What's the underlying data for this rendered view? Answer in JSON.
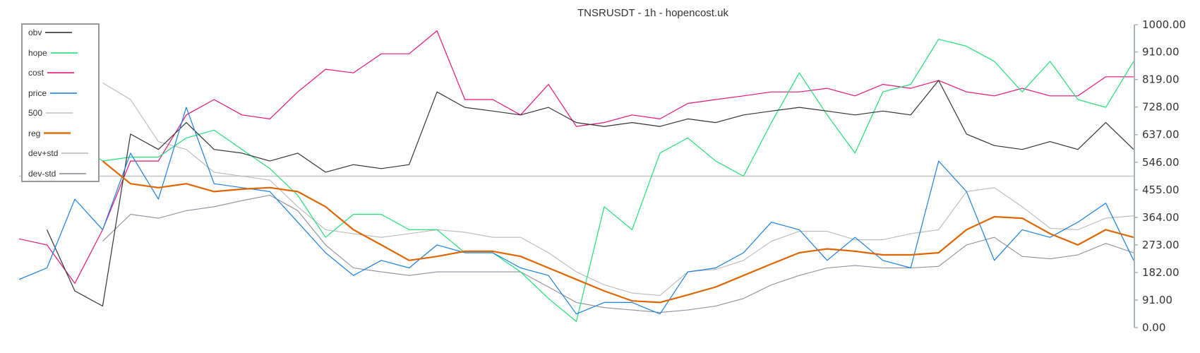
{
  "chart_data": {
    "type": "line",
    "title": "TNSRUSDT - 1h - hopencost.uk",
    "xlabel": "",
    "ylabel": "",
    "ylim": [
      0,
      1000
    ],
    "yticks": [
      "0.00",
      "91.00",
      "182.00",
      "273.00",
      "364.00",
      "455.00",
      "546.00",
      "637.00",
      "728.00",
      "819.00",
      "910.00",
      "1000.00"
    ],
    "ytick_values": [
      0,
      91,
      182,
      273,
      364,
      455,
      546,
      637,
      728,
      819,
      910,
      1000
    ],
    "y_axis_side": "right",
    "grid": false,
    "legend_position": "top-left",
    "x": [
      0,
      1,
      2,
      3,
      4,
      5,
      6,
      7,
      8,
      9,
      10,
      11,
      12,
      13,
      14,
      15,
      16,
      17,
      18,
      19,
      20,
      21,
      22,
      23,
      24,
      25,
      26,
      27,
      28,
      29,
      30,
      31,
      32,
      33,
      34,
      35,
      36,
      37,
      38,
      39,
      40
    ],
    "series": [
      {
        "name": "obv",
        "color": "#333333",
        "width": 1.2,
        "values": [
          null,
          323,
          121,
          71,
          639,
          588,
          677,
          588,
          576,
          550,
          576,
          513,
          538,
          525,
          538,
          778,
          727,
          715,
          702,
          727,
          677,
          664,
          677,
          664,
          689,
          677,
          702,
          715,
          727,
          715,
          702,
          715,
          702,
          816,
          639,
          601,
          588,
          614,
          588,
          677,
          588
        ]
      },
      {
        "name": "hope",
        "color": "#22dd77",
        "width": 1.2,
        "values": [
          null,
          null,
          614,
          550,
          563,
          563,
          626,
          652,
          588,
          525,
          437,
          298,
          374,
          374,
          323,
          323,
          247,
          247,
          184,
          96,
          20,
          399,
          323,
          576,
          626,
          550,
          500,
          677,
          841,
          702,
          576,
          778,
          803,
          952,
          929,
          879,
          778,
          879,
          753,
          727,
          879
        ]
      },
      {
        "name": "cost",
        "color": "#e0157a",
        "width": 1.2,
        "values": [
          293,
          273,
          146,
          323,
          550,
          550,
          702,
          753,
          702,
          689,
          778,
          853,
          841,
          904,
          904,
          980,
          753,
          753,
          702,
          803,
          664,
          677,
          702,
          689,
          740,
          753,
          765,
          778,
          778,
          790,
          765,
          803,
          790,
          816,
          778,
          765,
          790,
          765,
          765,
          828,
          828
        ]
      },
      {
        "name": "price",
        "color": "#1a7fe0",
        "width": 1.2,
        "values": [
          159,
          197,
          424,
          323,
          576,
          424,
          727,
          475,
          462,
          449,
          348,
          247,
          172,
          222,
          197,
          273,
          247,
          247,
          197,
          172,
          45,
          83,
          83,
          45,
          184,
          197,
          247,
          348,
          323,
          222,
          298,
          222,
          197,
          550,
          449,
          222,
          323,
          298,
          348,
          411,
          222
        ]
      },
      {
        "name": "500",
        "color": "#c4c4c4",
        "width": 1.5,
        "values": [
          500,
          500,
          500,
          500,
          500,
          500,
          500,
          500,
          500,
          500,
          500,
          500,
          500,
          500,
          500,
          500,
          500,
          500,
          500,
          500,
          500,
          500,
          500,
          500,
          500,
          500,
          500,
          500,
          500,
          500,
          500,
          500,
          500,
          500,
          500,
          500,
          500,
          500,
          500,
          500,
          500
        ]
      },
      {
        "name": "reg",
        "color": "#dd6600",
        "width": 2.2,
        "values": [
          null,
          null,
          null,
          550,
          475,
          462,
          475,
          449,
          457,
          462,
          449,
          399,
          323,
          273,
          222,
          235,
          252,
          252,
          235,
          197,
          159,
          121,
          88,
          83,
          108,
          134,
          172,
          210,
          247,
          260,
          252,
          240,
          240,
          247,
          323,
          366,
          361,
          310,
          273,
          323,
          298
        ]
      },
      {
        "name": "dev+std",
        "color": "#b8b8b8",
        "width": 1.1,
        "values": [
          null,
          null,
          null,
          808,
          753,
          614,
          588,
          513,
          500,
          487,
          399,
          323,
          310,
          298,
          310,
          323,
          315,
          298,
          298,
          247,
          184,
          141,
          114,
          106,
          184,
          192,
          222,
          285,
          318,
          318,
          290,
          290,
          310,
          323,
          449,
          462,
          399,
          328,
          323,
          361,
          369
        ]
      },
      {
        "name": "dev-std",
        "color": "#8a9099",
        "width": 1.1,
        "values": [
          null,
          null,
          null,
          285,
          374,
          361,
          386,
          399,
          419,
          437,
          386,
          273,
          197,
          184,
          172,
          184,
          184,
          184,
          184,
          134,
          83,
          66,
          58,
          50,
          58,
          71,
          96,
          141,
          172,
          197,
          205,
          197,
          197,
          202,
          273,
          298,
          235,
          227,
          240,
          278,
          247
        ]
      }
    ]
  }
}
